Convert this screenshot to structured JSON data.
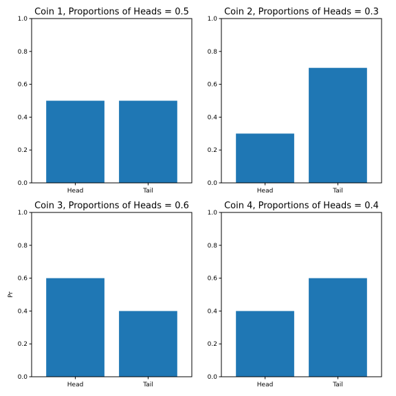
{
  "chart_data": [
    {
      "type": "bar",
      "title": "Coin 1, Proportions of Heads = 0.5",
      "categories": [
        "Head",
        "Tail"
      ],
      "values": [
        0.5,
        0.5
      ],
      "ylabel": "",
      "ylim": [
        0,
        1.0
      ],
      "yticks": [
        "0.0",
        "0.2",
        "0.4",
        "0.6",
        "0.8",
        "1.0"
      ],
      "grid": false,
      "color": "#1f77b4"
    },
    {
      "type": "bar",
      "title": "Coin 2, Proportions of Heads = 0.3",
      "categories": [
        "Head",
        "Tail"
      ],
      "values": [
        0.3,
        0.7
      ],
      "ylabel": "",
      "ylim": [
        0,
        1.0
      ],
      "yticks": [
        "0.0",
        "0.2",
        "0.4",
        "0.6",
        "0.8",
        "1.0"
      ],
      "grid": false,
      "color": "#1f77b4"
    },
    {
      "type": "bar",
      "title": "Coin 3, Proportions of Heads = 0.6",
      "categories": [
        "Head",
        "Tail"
      ],
      "values": [
        0.6,
        0.4
      ],
      "ylabel": "Pr",
      "ylim": [
        0,
        1.0
      ],
      "yticks": [
        "0.0",
        "0.2",
        "0.4",
        "0.6",
        "0.8",
        "1.0"
      ],
      "grid": false,
      "color": "#1f77b4"
    },
    {
      "type": "bar",
      "title": "Coin 4, Proportions of Heads = 0.4",
      "categories": [
        "Head",
        "Tail"
      ],
      "values": [
        0.4,
        0.6
      ],
      "ylabel": "",
      "ylim": [
        0,
        1.0
      ],
      "yticks": [
        "0.0",
        "0.2",
        "0.4",
        "0.6",
        "0.8",
        "1.0"
      ],
      "grid": false,
      "color": "#1f77b4"
    }
  ]
}
